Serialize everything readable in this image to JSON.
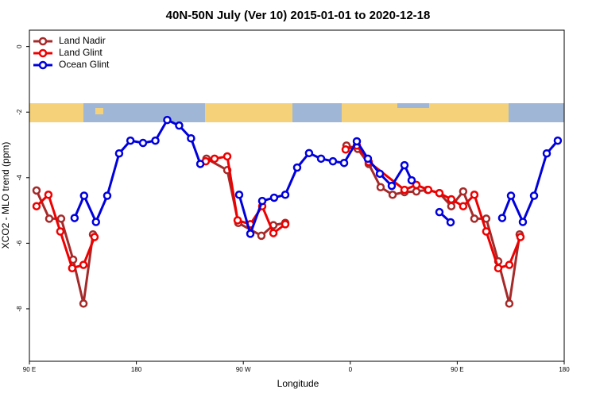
{
  "chart_data": {
    "type": "line",
    "title": "40N-50N July (Ver 10)   2015-01-01 to 2020-12-18",
    "x_label": "Longitude",
    "y_label": "XCO2 - MLO trend (ppm)",
    "xlim": [
      90,
      540
    ],
    "ylim": [
      -9.6,
      0.5
    ],
    "xticks": [
      {
        "value": 90,
        "label": "90 E"
      },
      180,
      {
        "value": 270,
        "label": "90 W"
      },
      {
        "value": 360,
        "label": "0"
      },
      {
        "value": 450,
        "label": "90 E"
      },
      {
        "value": 540,
        "label": "180"
      }
    ],
    "yticks": [
      0,
      -2,
      -4,
      -6,
      -8
    ],
    "legend": "top-left",
    "series": [
      {
        "name": "Land Nadir",
        "color": "#a52a2a",
        "x": [
          96,
          106.7,
          116.7,
          126.8,
          135.5,
          143.5,
          null,
          239,
          256.5,
          265.8,
          285.2,
          295.3,
          305.3,
          null,
          356.8,
          366.2,
          375.5,
          385.5,
          395.6,
          405.6,
          415.6,
          425,
          435,
          445,
          455,
          464.4,
          474.4,
          484.5,
          493.8,
          502.5
        ],
        "values": [
          -4.39,
          -5.25,
          -5.25,
          -6.5,
          -7.84,
          -5.73,
          null,
          -3.42,
          -3.77,
          -5.38,
          -5.77,
          -5.45,
          -5.38,
          null,
          -3.02,
          -3.12,
          -3.58,
          -4.29,
          -4.52,
          -4.44,
          -4.42,
          -4.37,
          -4.47,
          -4.87,
          -4.42,
          -5.25,
          -5.25,
          -6.55,
          -7.84,
          -5.73
        ]
      },
      {
        "name": "Land Glint",
        "color": "#ee0000",
        "x": [
          96,
          106,
          116,
          126,
          135.5,
          144.8,
          null,
          238.4,
          245.8,
          256.5,
          265.2,
          275.9,
          285.9,
          295.3,
          305.3,
          null,
          356.1,
          365.5,
          375.5,
          405.6,
          415.6,
          425.6,
          435,
          445,
          455,
          464.4,
          474.4,
          484.5,
          493.8,
          503.2
        ],
        "values": [
          -4.87,
          -4.52,
          -5.64,
          -6.76,
          -6.66,
          -5.81,
          null,
          -3.5,
          -3.42,
          -3.35,
          -5.3,
          -5.42,
          -4.87,
          -5.69,
          -5.42,
          null,
          -3.14,
          -3.02,
          -3.52,
          -4.37,
          -4.22,
          -4.37,
          -4.47,
          -4.66,
          -4.87,
          -4.52,
          -5.64,
          -6.76,
          -6.66,
          -5.81
        ]
      },
      {
        "name": "Ocean Glint",
        "color": "#0000dd",
        "x": [
          128,
          136,
          146,
          155.5,
          165.5,
          175,
          185.6,
          196,
          206,
          216,
          226,
          233.8,
          null,
          266.5,
          275.9,
          285.9,
          295.9,
          305.3,
          315.3,
          325.3,
          335.4,
          345.4,
          354.8,
          365.5,
          374.8,
          384.9,
          394.9,
          405.6,
          411.6,
          null,
          435,
          444.4,
          null,
          487.8,
          495.2,
          505.2,
          514.6,
          525.3,
          534.6
        ],
        "values": [
          -5.23,
          -4.55,
          -5.35,
          -4.55,
          -3.26,
          -2.87,
          -2.94,
          -2.87,
          -2.24,
          -2.41,
          -2.8,
          -3.58,
          null,
          -4.52,
          -5.71,
          -4.71,
          -4.61,
          -4.52,
          -3.69,
          -3.25,
          -3.42,
          -3.5,
          -3.55,
          -2.89,
          -3.42,
          -3.88,
          -4.25,
          -3.62,
          -4.08,
          null,
          -5.05,
          -5.36,
          null,
          -5.23,
          -4.55,
          -5.35,
          -4.55,
          -3.26,
          -2.87
        ]
      }
    ]
  }
}
